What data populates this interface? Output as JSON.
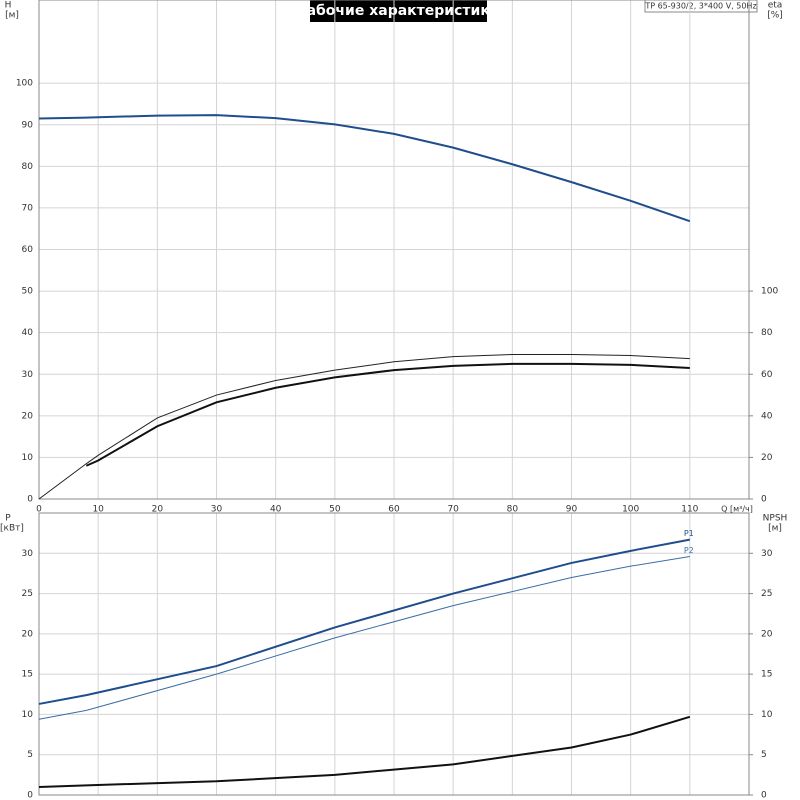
{
  "header": {
    "title": "Рабочие характеристики",
    "info": "TP 65-930/2, 3*400 V, 50Hz"
  },
  "chart_data": [
    {
      "type": "line",
      "xlabel": "Q [м³/ч]",
      "ylabel": [
        "H",
        "[м]"
      ],
      "y2label": [
        "eta",
        "[%]"
      ],
      "xlim": [
        0,
        120
      ],
      "xticks": [
        0,
        10,
        20,
        30,
        40,
        50,
        60,
        70,
        80,
        90,
        100,
        110
      ],
      "ylim": [
        0,
        120
      ],
      "yticks": [
        0,
        10,
        20,
        30,
        40,
        50,
        60,
        70,
        80,
        90,
        100
      ],
      "y2lim": [
        0,
        240
      ],
      "y2ticks": [
        0,
        20,
        40,
        60,
        80,
        100
      ],
      "grid": true,
      "x": [
        0,
        8,
        10,
        20,
        30,
        40,
        50,
        60,
        70,
        80,
        90,
        100,
        110
      ],
      "series": [
        {
          "color": "#1f4e8c",
          "values": [
            91.5,
            91.7,
            91.8,
            92.2,
            92.3,
            91.6,
            90.1,
            87.8,
            84.5,
            80.5,
            76.2,
            71.7,
            66.8
          ]
        },
        {
          "color": "#222222",
          "axis": "y2",
          "values": [
            0,
            17,
            21,
            39,
            50,
            57,
            62,
            66,
            68.5,
            69.5,
            69.5,
            69,
            67.5
          ]
        },
        {
          "color": "#111111",
          "axis": "y2",
          "values": [
            null,
            16,
            18.5,
            35,
            46.5,
            53.5,
            58.5,
            62,
            64,
            65,
            65,
            64.5,
            63
          ]
        }
      ]
    },
    {
      "type": "line",
      "ylabel": [
        "P",
        "[кВт]"
      ],
      "y2label": [
        "NPSH",
        "[м]"
      ],
      "xlim": [
        0,
        120
      ],
      "xticks": [
        0,
        10,
        20,
        30,
        40,
        50,
        60,
        70,
        80,
        90,
        100,
        110
      ],
      "ylim": [
        0,
        35
      ],
      "yticks": [
        0,
        5,
        10,
        15,
        20,
        25,
        30
      ],
      "y2lim": [
        0,
        35
      ],
      "y2ticks": [
        0,
        5,
        10,
        15,
        20,
        25,
        30
      ],
      "grid": true,
      "x": [
        0,
        8,
        30,
        50,
        70,
        90,
        100,
        110
      ],
      "series": [
        {
          "name": "P1",
          "color": "#1f4e8c",
          "values": [
            11.3,
            12.4,
            16,
            20.8,
            25,
            28.8,
            30.3,
            31.7
          ]
        },
        {
          "name": "P2",
          "color": "#3a6ea5",
          "values": [
            9.4,
            10.5,
            15,
            19.5,
            23.5,
            27,
            28.4,
            29.6
          ]
        },
        {
          "color": "#111111",
          "axis": "y2",
          "values": [
            1.0,
            1.2,
            1.7,
            2.5,
            3.8,
            5.9,
            7.5,
            9.7
          ]
        }
      ]
    }
  ]
}
